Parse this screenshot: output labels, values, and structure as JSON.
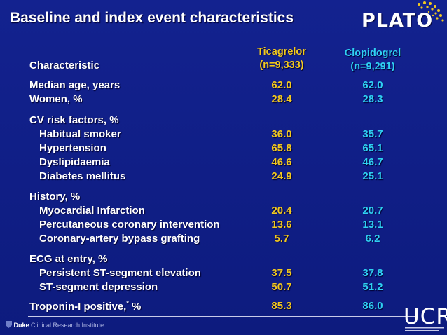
{
  "title": "Baseline and index event characteristics",
  "logo": "PLATO",
  "header": {
    "characteristic": "Characteristic",
    "ticagrelor_name": "Ticagrelor",
    "ticagrelor_n": "(n=9,333)",
    "clopidogrel_name": "Clopidogrel",
    "clopidogrel_n": "(n=9,291)"
  },
  "rows": [
    {
      "label": "Median age, years",
      "t": "62.0",
      "c": "62.0"
    },
    {
      "label": "Women, %",
      "t": "28.4",
      "c": "28.3"
    },
    {
      "label": "CV risk factors, %",
      "t": "",
      "c": ""
    },
    {
      "label": "Habitual smoker",
      "t": "36.0",
      "c": "35.7"
    },
    {
      "label": "Hypertension",
      "t": "65.8",
      "c": "65.1"
    },
    {
      "label": "Dyslipidaemia",
      "t": "46.6",
      "c": "46.7"
    },
    {
      "label": "Diabetes mellitus",
      "t": "24.9",
      "c": "25.1"
    },
    {
      "label": "History, %",
      "t": "",
      "c": ""
    },
    {
      "label": "Myocardial Infarction",
      "t": "20.4",
      "c": "20.7"
    },
    {
      "label": "Percutaneous coronary intervention",
      "t": "13.6",
      "c": "13.1"
    },
    {
      "label": "Coronary-artery bypass grafting",
      "t": "5.7",
      "c": "6.2"
    },
    {
      "label": "ECG at entry, %",
      "t": "",
      "c": ""
    },
    {
      "label": "Persistent ST-segment elevation",
      "t": "37.5",
      "c": "37.8"
    },
    {
      "label": "ST-segment depression",
      "t": "50.7",
      "c": "51.2"
    },
    {
      "label": "Troponin-I positive,",
      "sup": "*",
      "suffix": " %",
      "t": "85.3",
      "c": "86.0"
    }
  ],
  "footer": {
    "duke_bold": "Duke",
    "duke_rest": " Clinical Research Institute",
    "ucr": "UCR"
  },
  "colors": {
    "background": "#0f1e86",
    "ticagrelor": "#f2c81f",
    "clopidogrel": "#2fd0f2"
  }
}
